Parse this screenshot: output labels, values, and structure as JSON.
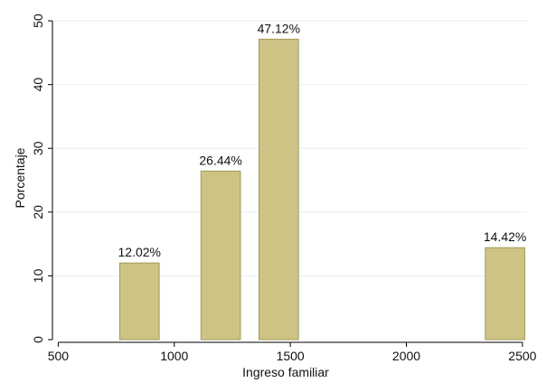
{
  "chart_data": {
    "type": "bar",
    "title": "",
    "xlabel": "Ingreso familiar",
    "ylabel": "Porcentaje",
    "x": [
      850,
      1200,
      1450,
      2425
    ],
    "bar_width": 170,
    "values": [
      12.02,
      26.44,
      47.12,
      14.42
    ],
    "data_labels": [
      "12.02%",
      "26.44%",
      "47.12%",
      "14.42%"
    ],
    "xlim": [
      475,
      2520
    ],
    "ylim": [
      0,
      51
    ],
    "xticks": [
      500,
      1000,
      1500,
      2000,
      2500
    ],
    "xtick_labels": [
      "500",
      "1000",
      "1500",
      "2000",
      "2500"
    ],
    "yticks": [
      0,
      10,
      20,
      30,
      40,
      50
    ],
    "ytick_labels": [
      "0",
      "10",
      "20",
      "30",
      "40",
      "50"
    ],
    "grid": true,
    "legend": "none",
    "colors": {
      "bar_fill": "#cdc385",
      "bar_stroke": "#a59a55",
      "grid": "#e6eef2",
      "axis": "#000000"
    }
  }
}
